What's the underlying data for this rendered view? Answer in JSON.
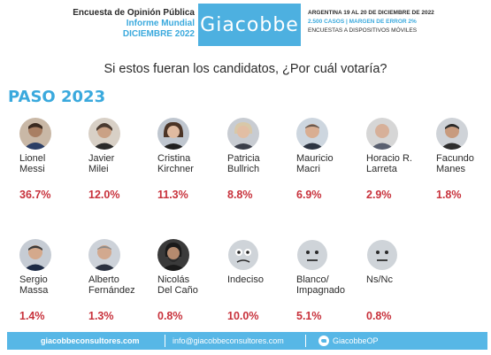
{
  "header": {
    "left_line1": "Encuesta de Opinión Pública",
    "left_line2": "Informe Mundial",
    "left_line3": "DICIEMBRE 2022",
    "logo_text": "Giacobbe",
    "right_line1": "ARGENTINA 19 AL 20 DE DICIEMBRE DE 2022",
    "right_line2": "2.500 CASOS | MARGEN DE ERROR 2%",
    "right_line3": "ENCUESTAS A DISPOSITIVOS MÓVILES"
  },
  "question": "Si estos fueran los candidatos, ¿Por cuál votaría?",
  "section_title": "PASO 2023",
  "candidates": [
    {
      "line1": "Lionel",
      "line2": "Messi",
      "pct": "36.7%",
      "icon": "photo"
    },
    {
      "line1": "Javier",
      "line2": "Milei",
      "pct": "12.0%",
      "icon": "photo"
    },
    {
      "line1": "Cristina",
      "line2": "Kirchner",
      "pct": "11.3%",
      "icon": "photo"
    },
    {
      "line1": "Patricia",
      "line2": "Bullrich",
      "pct": "8.8%",
      "icon": "photo"
    },
    {
      "line1": "Mauricio",
      "line2": "Macri",
      "pct": "6.9%",
      "icon": "photo"
    },
    {
      "line1": "Horacio R.",
      "line2": "Larreta",
      "pct": "2.9%",
      "icon": "photo"
    },
    {
      "line1": "Facundo",
      "line2": "Manes",
      "pct": "1.8%",
      "icon": "photo"
    },
    {
      "line1": "Sergio",
      "line2": "Massa",
      "pct": "1.4%",
      "icon": "photo"
    },
    {
      "line1": "Alberto",
      "line2": "Fernández",
      "pct": "1.3%",
      "icon": "photo"
    },
    {
      "line1": "Nicolás",
      "line2": "Del Caño",
      "pct": "0.8%",
      "icon": "photo"
    },
    {
      "line1": "Indeciso",
      "line2": "",
      "pct": "10.0%",
      "icon": "thinking-face-icon"
    },
    {
      "line1": "Blanco/",
      "line2": "Impagnado",
      "pct": "5.1%",
      "icon": "neutral-face-icon"
    },
    {
      "line1": "Ns/Nc",
      "line2": "",
      "pct": "0.8%",
      "icon": "neutral-face-icon"
    }
  ],
  "footer": {
    "website": "giacobbeconsultores.com",
    "email": "info@giacobbeconsultores.com",
    "twitter": "GiacobbeOP"
  },
  "colors": {
    "accent": "#4db0e0",
    "percent": "#c8323c",
    "footer": "#57b7e6"
  }
}
